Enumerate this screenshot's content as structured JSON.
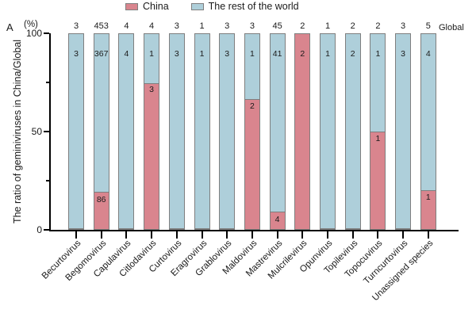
{
  "panel_label": "A",
  "global_label": "Global",
  "y_axis": {
    "unit_label": "(%)",
    "title": "The ratio of geminiviruses in China/Global"
  },
  "legend": [
    {
      "label": "China",
      "color": "#d9858e"
    },
    {
      "label": "The rest of the world",
      "color": "#aecfda"
    }
  ],
  "chart_data": {
    "type": "bar",
    "stacked": true,
    "title": "",
    "xlabel": "",
    "ylabel": "The ratio of geminiviruses in China/Global",
    "y_unit": "%",
    "ylim": [
      0,
      100
    ],
    "y_ticks": [
      0,
      50,
      100
    ],
    "y_minor_ticks": [
      25,
      75
    ],
    "legend_position": "top",
    "grid": false,
    "categories": [
      "Becurtovirus",
      "Begomovirus",
      "Capulavirus",
      "Citlodavirus",
      "Curtovirus",
      "Eragrovirus",
      "Grablovirus",
      "Maldovirus",
      "Mastrevirus",
      "Mulcrilevirus",
      "Opunvirus",
      "Topilevirus",
      "Topocuvirus",
      "Turncurtovirus",
      "Unassigned species"
    ],
    "series": [
      {
        "name": "China",
        "color": "#d9858e",
        "values": [
          0,
          86,
          0,
          3,
          0,
          0,
          0,
          2,
          4,
          2,
          0,
          0,
          1,
          0,
          1
        ]
      },
      {
        "name": "The rest of the world",
        "color": "#aecfda",
        "values": [
          3,
          367,
          4,
          1,
          3,
          1,
          3,
          1,
          41,
          0,
          1,
          2,
          1,
          3,
          4
        ]
      }
    ],
    "totals": [
      3,
      453,
      4,
      4,
      3,
      1,
      3,
      3,
      45,
      2,
      1,
      2,
      2,
      3,
      5
    ],
    "bar_unit": "percent_of_total",
    "note": "Each bar is scaled to 100%; segment heights are China/total and rest/total; numbers inside segments are absolute counts; numbers above bars are global totals"
  },
  "colors": {
    "china": "#d9858e",
    "rest_of_world": "#aecfda",
    "bar_border": "#7f7f7f",
    "axis": "#000000",
    "text": "#1a1a1a"
  }
}
